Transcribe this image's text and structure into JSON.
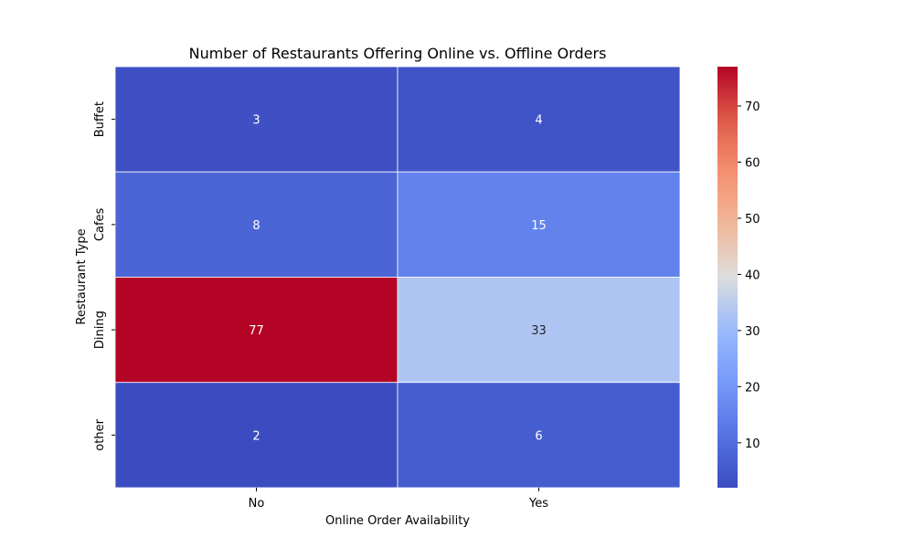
{
  "chart_data": {
    "type": "heatmap",
    "title": "Number of Restaurants Offering Online vs. Offline Orders",
    "xlabel": "Online Order Availability",
    "ylabel": "Restaurant Type",
    "x_categories": [
      "No",
      "Yes"
    ],
    "y_categories": [
      "Buffet",
      "Cafes",
      "Dining",
      "other"
    ],
    "values": [
      [
        3,
        4
      ],
      [
        8,
        15
      ],
      [
        77,
        33
      ],
      [
        2,
        6
      ]
    ],
    "colormap": "coolwarm",
    "color_range": [
      2,
      77
    ],
    "colorbar_ticks": [
      10,
      20,
      30,
      40,
      50,
      60,
      70
    ],
    "annotated": true,
    "grid_lines_color": "#ffffff"
  }
}
